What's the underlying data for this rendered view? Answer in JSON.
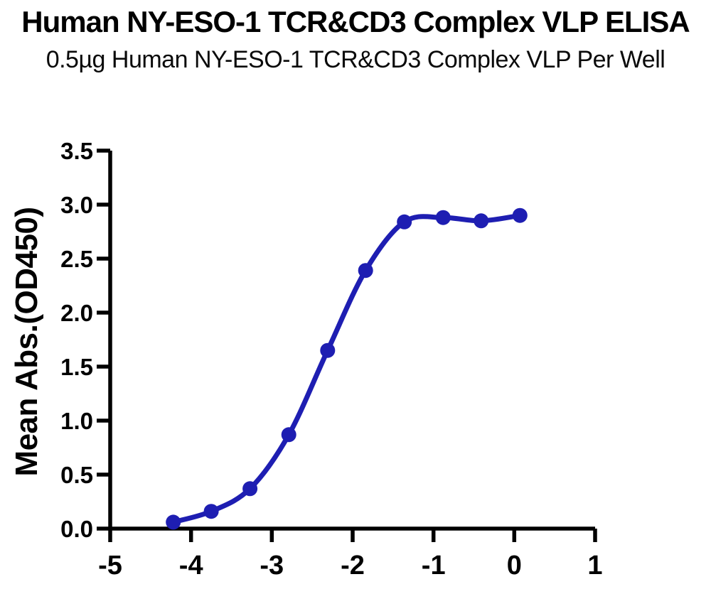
{
  "header": {
    "title": "Human NY-ESO-1 TCR&CD3 Complex VLP ELISA",
    "subtitle": "0.5µg Human NY-ESO-1 TCR&CD3 Complex VLP Per Well"
  },
  "chart_data": {
    "type": "scatter",
    "title": "Human NY-ESO-1 TCR&CD3 Complex VLP ELISA",
    "subtitle": "0.5µg Human NY-ESO-1 TCR&CD3 Complex VLP Per Well",
    "xlabel": "",
    "ylabel": "Mean Abs.(OD450)",
    "xlim": [
      -5,
      1
    ],
    "ylim": [
      0,
      3.5
    ],
    "grid": false,
    "legend": "none",
    "axis_color": "#000000",
    "background_color": "#ffffff",
    "xticks": {
      "values": [
        -5,
        -4,
        -3,
        -2,
        -1,
        0,
        1
      ],
      "labels": [
        "-5",
        "-4",
        "-3",
        "-2",
        "-1",
        "0",
        "1"
      ]
    },
    "yticks": {
      "values": [
        0,
        0.5,
        1.0,
        1.5,
        2.0,
        2.5,
        3.0,
        3.5
      ],
      "labels": [
        "0.0",
        "0.5",
        "1.0",
        "1.5",
        "2.0",
        "2.5",
        "3.0",
        "3.5"
      ]
    },
    "series": [
      {
        "name": "Human NY-ESO-1 TCR&CD3 Complex VLP",
        "color": "#1E1EB2",
        "marker": "circle",
        "curve": "sigmoid-fit",
        "x": [
          -4.22,
          -3.75,
          -3.27,
          -2.79,
          -2.31,
          -1.84,
          -1.36,
          -0.88,
          -0.41,
          0.07
        ],
        "y": [
          0.06,
          0.16,
          0.37,
          0.87,
          1.65,
          2.39,
          2.84,
          2.88,
          2.85,
          2.9
        ]
      }
    ]
  }
}
